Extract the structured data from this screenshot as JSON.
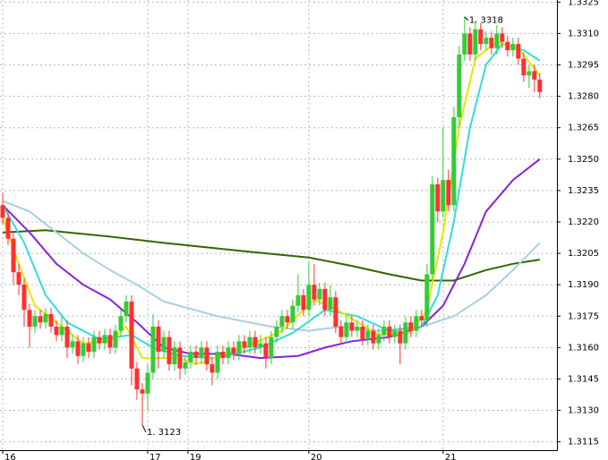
{
  "chart_data": {
    "type": "candlestick",
    "up_color": "#33cc33",
    "down_color": "#ff3030",
    "grid": true,
    "xlim": [
      -0.5,
      103.2
    ],
    "xticks": [
      {
        "value": 0,
        "label": "16"
      },
      {
        "value": 27,
        "label": "17"
      },
      {
        "value": 34.5,
        "label": "19"
      },
      {
        "value": 57,
        "label": "20"
      },
      {
        "value": 82,
        "label": "21"
      }
    ],
    "ylim": [
      1.3111,
      1.3326
    ],
    "yticks": [
      1.3325,
      {
        "value": 1.331,
        "label": "1.3310"
      },
      1.3295,
      {
        "value": 1.328,
        "label": "1.3280"
      },
      1.3265,
      {
        "value": 1.325,
        "label": "1.3250"
      },
      1.3235,
      {
        "value": 1.322,
        "label": "1.3220"
      },
      1.3205,
      {
        "value": 1.319,
        "label": "1.3190"
      },
      1.3175,
      {
        "value": 1.316,
        "label": "1.3160"
      },
      1.3145,
      {
        "value": 1.313,
        "label": "1.3130"
      },
      1.3115
    ],
    "open": [
      1.3228,
      1.3222,
      1.3212,
      1.3196,
      1.319,
      1.3178,
      1.317,
      1.3175,
      1.3172,
      1.3176,
      1.317,
      1.3166,
      1.317,
      1.316,
      1.3163,
      1.3156,
      1.3162,
      1.3158,
      1.3165,
      1.3162,
      1.3166,
      1.316,
      1.3168,
      1.3175,
      1.3182,
      1.315,
      1.314,
      1.3138,
      1.3148,
      1.317,
      1.3158,
      1.3165,
      1.3152,
      1.316,
      1.315,
      1.3153,
      1.3158,
      1.3155,
      1.316,
      1.3152,
      1.3148,
      1.3158,
      1.3155,
      1.316,
      1.3157,
      1.3163,
      1.316,
      1.3165,
      1.316,
      1.3162,
      1.3155,
      1.3165,
      1.317,
      1.3175,
      1.3172,
      1.318,
      1.3185,
      1.3178,
      1.319,
      1.3183,
      1.3188,
      1.3178,
      1.3184,
      1.317,
      1.3165,
      1.3172,
      1.3168,
      1.317,
      1.3164,
      1.3168,
      1.3162,
      1.3166,
      1.317,
      1.3165,
      1.3168,
      1.3162,
      1.3172,
      1.3168,
      1.3175,
      1.3173,
      1.3195,
      1.3238,
      1.3225,
      1.324,
      1.3228,
      1.327,
      1.33,
      1.331,
      1.33,
      1.3312,
      1.3305,
      1.3308,
      1.3303,
      1.331,
      1.3306,
      1.3302,
      1.3305,
      1.3298,
      1.329,
      1.3292,
      1.3288
    ],
    "high": [
      1.3234,
      1.3225,
      1.3215,
      1.32,
      1.3193,
      1.3181,
      1.3178,
      1.3178,
      1.3179,
      1.3179,
      1.3173,
      1.3175,
      1.3173,
      1.3166,
      1.3166,
      1.3165,
      1.3165,
      1.3168,
      1.3168,
      1.3169,
      1.3169,
      1.3171,
      1.3178,
      1.3185,
      1.3185,
      1.3153,
      1.3143,
      1.3152,
      1.3176,
      1.3173,
      1.3168,
      1.3168,
      1.3163,
      1.3163,
      1.3156,
      1.3161,
      1.3161,
      1.3163,
      1.3163,
      1.3155,
      1.3161,
      1.3161,
      1.3163,
      1.3163,
      1.3166,
      1.3166,
      1.3168,
      1.3168,
      1.3166,
      1.3165,
      1.3168,
      1.3173,
      1.3178,
      1.3178,
      1.3183,
      1.3195,
      1.3188,
      1.3201,
      1.32,
      1.3191,
      1.3191,
      1.319,
      1.3187,
      1.3173,
      1.3175,
      1.3175,
      1.3173,
      1.3173,
      1.3171,
      1.3171,
      1.3169,
      1.3173,
      1.3173,
      1.3171,
      1.3171,
      1.3175,
      1.3175,
      1.3178,
      1.3178,
      1.32,
      1.3242,
      1.3241,
      1.3265,
      1.3245,
      1.3275,
      1.3304,
      1.3318,
      1.3313,
      1.3316,
      1.3315,
      1.3311,
      1.3311,
      1.3314,
      1.3313,
      1.3309,
      1.3308,
      1.3308,
      1.3301,
      1.3295,
      1.3295,
      1.3291
    ],
    "low": [
      1.3219,
      1.3209,
      1.319,
      1.3185,
      1.317,
      1.316,
      1.3167,
      1.3169,
      1.3169,
      1.3167,
      1.3163,
      1.3163,
      1.3155,
      1.3157,
      1.3152,
      1.3153,
      1.3155,
      1.3155,
      1.3159,
      1.3159,
      1.3157,
      1.3157,
      1.3165,
      1.3172,
      1.3142,
      1.3135,
      1.3123,
      1.313,
      1.3145,
      1.315,
      1.3155,
      1.3149,
      1.3149,
      1.3145,
      1.3147,
      1.315,
      1.3152,
      1.3152,
      1.3149,
      1.3142,
      1.3145,
      1.3152,
      1.3152,
      1.3154,
      1.3154,
      1.3157,
      1.3157,
      1.3157,
      1.3157,
      1.315,
      1.3152,
      1.3162,
      1.3167,
      1.3169,
      1.3169,
      1.3177,
      1.3175,
      1.3175,
      1.318,
      1.318,
      1.3175,
      1.3175,
      1.3167,
      1.3162,
      1.3162,
      1.3165,
      1.3165,
      1.3161,
      1.3161,
      1.3159,
      1.3159,
      1.3163,
      1.3162,
      1.3162,
      1.3152,
      1.3159,
      1.3165,
      1.3165,
      1.317,
      1.317,
      1.3192,
      1.322,
      1.3222,
      1.3225,
      1.3225,
      1.3265,
      1.3297,
      1.3297,
      1.3297,
      1.3302,
      1.3302,
      1.33,
      1.33,
      1.3303,
      1.3299,
      1.3299,
      1.3295,
      1.3287,
      1.3284,
      1.3282,
      1.3279
    ],
    "close": [
      1.3222,
      1.3212,
      1.3196,
      1.319,
      1.3178,
      1.317,
      1.3175,
      1.3172,
      1.3176,
      1.317,
      1.3166,
      1.317,
      1.316,
      1.3163,
      1.3156,
      1.3162,
      1.3158,
      1.3165,
      1.3162,
      1.3166,
      1.316,
      1.3168,
      1.3175,
      1.3182,
      1.315,
      1.314,
      1.3138,
      1.3148,
      1.317,
      1.3158,
      1.3165,
      1.3152,
      1.316,
      1.315,
      1.3153,
      1.3158,
      1.3155,
      1.316,
      1.3152,
      1.3148,
      1.3158,
      1.3155,
      1.316,
      1.3157,
      1.3163,
      1.316,
      1.3165,
      1.316,
      1.3162,
      1.3155,
      1.3165,
      1.317,
      1.3175,
      1.3172,
      1.318,
      1.3185,
      1.3178,
      1.319,
      1.3183,
      1.3188,
      1.3178,
      1.3184,
      1.317,
      1.3165,
      1.3172,
      1.3168,
      1.317,
      1.3164,
      1.3168,
      1.3162,
      1.3166,
      1.317,
      1.3165,
      1.3168,
      1.3162,
      1.3172,
      1.3168,
      1.3175,
      1.3173,
      1.3195,
      1.3238,
      1.3225,
      1.324,
      1.3228,
      1.327,
      1.33,
      1.331,
      1.33,
      1.3312,
      1.3305,
      1.3308,
      1.3303,
      1.331,
      1.3306,
      1.3302,
      1.3305,
      1.3298,
      1.329,
      1.3292,
      1.3288,
      1.3282
    ],
    "lines": [
      {
        "color": "#336600",
        "x": [
          0,
          8,
          20,
          30,
          45,
          57,
          65,
          72,
          78,
          84,
          90,
          95,
          100
        ],
        "values": [
          1.3215,
          1.3216,
          1.3213,
          1.321,
          1.3206,
          1.3203,
          1.3199,
          1.3195,
          1.3192,
          1.3192,
          1.3197,
          1.32,
          1.3202
        ]
      },
      {
        "color": "#a8d0e0",
        "x": [
          0,
          5,
          10,
          15,
          20,
          25,
          30,
          40,
          50,
          57,
          63,
          70,
          78,
          84,
          90,
          95,
          100
        ],
        "values": [
          1.323,
          1.3225,
          1.3215,
          1.3205,
          1.3197,
          1.319,
          1.3182,
          1.3175,
          1.317,
          1.3168,
          1.317,
          1.3168,
          1.317,
          1.3175,
          1.3185,
          1.3197,
          1.321
        ]
      },
      {
        "color": "#8822dd",
        "x": [
          0,
          5,
          10,
          15,
          20,
          25,
          30,
          35,
          42,
          48,
          55,
          60,
          65,
          72,
          78,
          82,
          86,
          90,
          95,
          100
        ],
        "values": [
          1.3228,
          1.3215,
          1.32,
          1.319,
          1.3183,
          1.3172,
          1.316,
          1.3157,
          1.3157,
          1.3155,
          1.3156,
          1.316,
          1.3163,
          1.3165,
          1.317,
          1.318,
          1.32,
          1.3225,
          1.324,
          1.325
        ]
      },
      {
        "color": "#33dddd",
        "x": [
          0,
          4,
          8,
          12,
          18,
          24,
          28,
          33,
          40,
          48,
          54,
          60,
          66,
          72,
          78,
          81,
          84,
          87,
          90,
          93,
          97,
          100
        ],
        "values": [
          1.3228,
          1.321,
          1.3185,
          1.3172,
          1.3164,
          1.3166,
          1.316,
          1.3156,
          1.3155,
          1.316,
          1.3167,
          1.3178,
          1.3175,
          1.3168,
          1.317,
          1.3185,
          1.322,
          1.3265,
          1.3295,
          1.3305,
          1.3302,
          1.3297
        ]
      },
      {
        "color": "#e6e600",
        "x": [
          0,
          3,
          6,
          10,
          15,
          20,
          23,
          26,
          29,
          33,
          36,
          45,
          52,
          58,
          63,
          70,
          76,
          79,
          82,
          85,
          88,
          92,
          96,
          100
        ],
        "values": [
          1.3222,
          1.32,
          1.318,
          1.3172,
          1.3162,
          1.3163,
          1.317,
          1.3155,
          1.3155,
          1.3155,
          1.3152,
          1.316,
          1.3168,
          1.3183,
          1.3177,
          1.3166,
          1.3167,
          1.3178,
          1.3215,
          1.3265,
          1.3298,
          1.3306,
          1.3303,
          1.329
        ]
      }
    ],
    "annotations": [
      {
        "text": "1. 3318",
        "x": 86,
        "y": 1.3318
      },
      {
        "text": "1. 3123",
        "x": 26,
        "y": 1.3123
      }
    ]
  }
}
